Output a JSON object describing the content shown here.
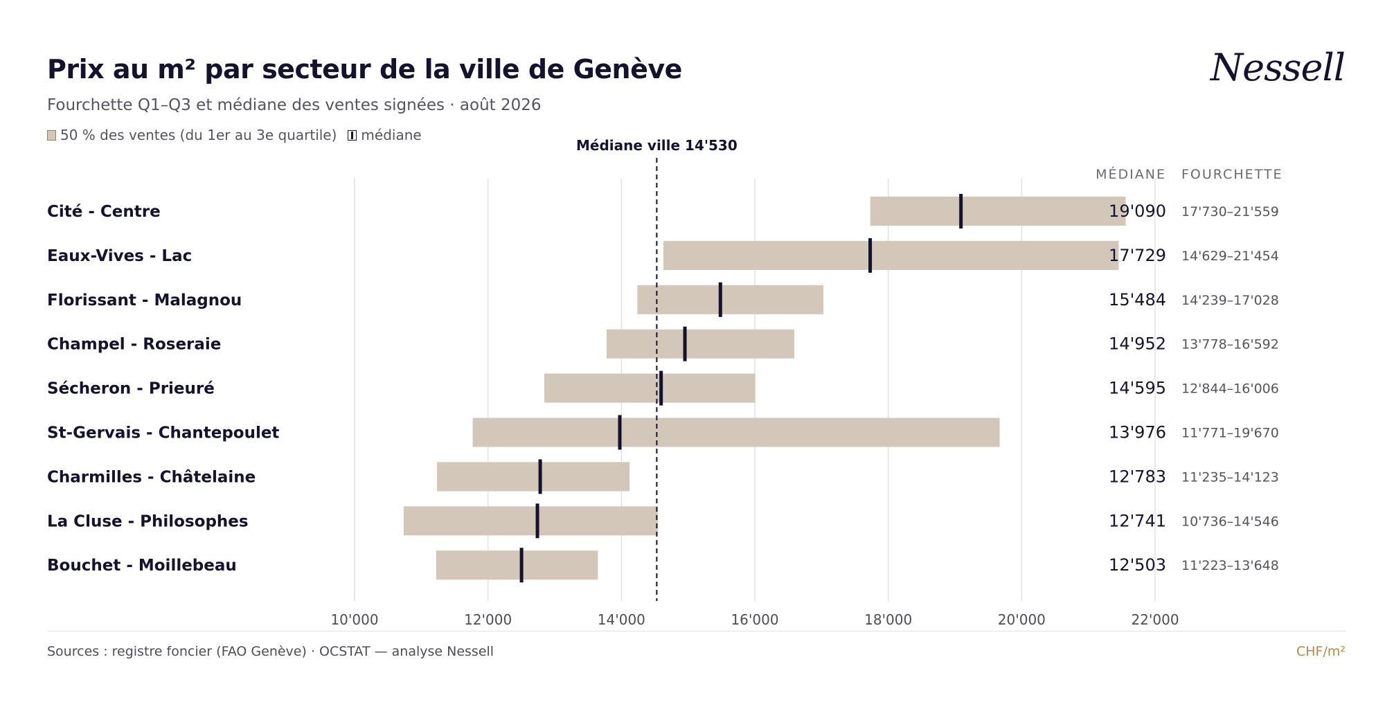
{
  "header": {
    "title": "Prix au m² par secteur de la ville de Genève",
    "subtitle": "Fourchette Q1–Q3 et médiane des ventes signées · août 2026",
    "legend_range": "50 % des ventes (du 1er au 3e quartile)",
    "legend_median": "médiane",
    "logo": "Nessell"
  },
  "footer": {
    "source": "Sources : registre foncier (FAO Genève) · OCSTAT — analyse Nessell",
    "unit": "CHF/m²"
  },
  "chart_data": {
    "type": "range-bar",
    "title": "Prix au m² par secteur de la ville de Genève",
    "subtitle": "Fourchette Q1–Q3 et médiane des ventes signées · août 2026",
    "xlim": [
      10000,
      22000
    ],
    "x_ticks": [
      10000,
      12000,
      14000,
      16000,
      18000,
      20000,
      22000
    ],
    "x_tick_labels": [
      "10'000",
      "12'000",
      "14'000",
      "16'000",
      "18'000",
      "20'000",
      "22'000"
    ],
    "grid": true,
    "reference_line": {
      "value": 14530,
      "label": "Médiane ville 14'530"
    },
    "column_headers": {
      "median": "MÉDIANE",
      "range": "FOURCHETTE"
    },
    "range_color": "#d2c7b8",
    "median_color": "#15122e",
    "sectors": [
      {
        "name": "Cité - Centre",
        "q1": 17730,
        "median": 19090,
        "q3": 21559,
        "median_label": "19'090",
        "range_label": "17'730–21'559"
      },
      {
        "name": "Eaux-Vives - Lac",
        "q1": 14629,
        "median": 17729,
        "q3": 21454,
        "median_label": "17'729",
        "range_label": "14'629–21'454"
      },
      {
        "name": "Florissant - Malagnou",
        "q1": 14239,
        "median": 15484,
        "q3": 17028,
        "median_label": "15'484",
        "range_label": "14'239–17'028"
      },
      {
        "name": "Champel - Roseraie",
        "q1": 13778,
        "median": 14952,
        "q3": 16592,
        "median_label": "14'952",
        "range_label": "13'778–16'592"
      },
      {
        "name": "Sécheron - Prieuré",
        "q1": 12844,
        "median": 14595,
        "q3": 16006,
        "median_label": "14'595",
        "range_label": "12'844–16'006"
      },
      {
        "name": "St-Gervais - Chantepoulet",
        "q1": 11771,
        "median": 13976,
        "q3": 19670,
        "median_label": "13'976",
        "range_label": "11'771–19'670"
      },
      {
        "name": "Charmilles - Châtelaine",
        "q1": 11235,
        "median": 12783,
        "q3": 14123,
        "median_label": "12'783",
        "range_label": "11'235–14'123"
      },
      {
        "name": "La Cluse - Philosophes",
        "q1": 10736,
        "median": 12741,
        "q3": 14546,
        "median_label": "12'741",
        "range_label": "10'736–14'546"
      },
      {
        "name": "Bouchet - Moillebeau",
        "q1": 11223,
        "median": 12503,
        "q3": 13648,
        "median_label": "12'503",
        "range_label": "11'223–13'648"
      }
    ]
  }
}
